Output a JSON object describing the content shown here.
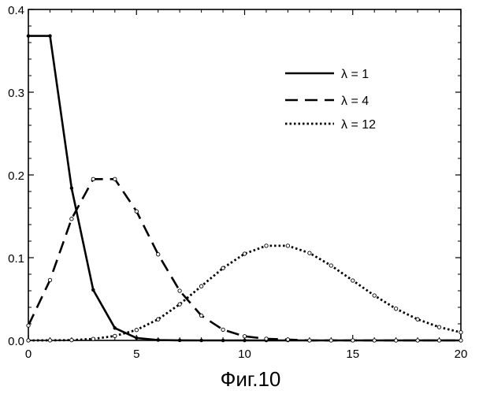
{
  "caption": "Фиг.10",
  "chart_data": {
    "type": "line",
    "title": "",
    "xlabel": "",
    "ylabel": "",
    "xlim": [
      0,
      20
    ],
    "ylim": [
      0,
      0.4
    ],
    "xticks": [
      0,
      5,
      10,
      15,
      20
    ],
    "xtick_labels": [
      "0",
      "5",
      "10",
      "15",
      "20"
    ],
    "yticks": [
      0,
      0.1,
      0.2,
      0.3,
      0.4
    ],
    "ytick_labels": [
      "0.0",
      "0.1",
      "0.2",
      "0.3",
      "0.4"
    ],
    "grid": false,
    "legend_position": "top-right",
    "series": [
      {
        "name": "λ = 1",
        "style": "solid",
        "x": [
          0,
          1,
          2,
          3,
          4,
          5,
          6,
          7,
          8,
          9,
          10,
          11,
          12,
          13,
          14,
          15,
          16,
          17,
          18,
          19,
          20
        ],
        "y": [
          0.368,
          0.368,
          0.184,
          0.061,
          0.015,
          0.003,
          0.0005,
          0.0001,
          0,
          0,
          0,
          0,
          0,
          0,
          0,
          0,
          0,
          0,
          0,
          0,
          0
        ]
      },
      {
        "name": "λ = 4",
        "style": "dashed",
        "x": [
          0,
          1,
          2,
          3,
          4,
          5,
          6,
          7,
          8,
          9,
          10,
          11,
          12,
          13,
          14,
          15,
          16,
          17,
          18,
          19,
          20
        ],
        "y": [
          0.018,
          0.073,
          0.147,
          0.195,
          0.195,
          0.156,
          0.104,
          0.06,
          0.03,
          0.013,
          0.005,
          0.002,
          0.001,
          0,
          0,
          0,
          0,
          0,
          0,
          0,
          0
        ]
      },
      {
        "name": "λ = 12",
        "style": "dotted",
        "x": [
          0,
          1,
          2,
          3,
          4,
          5,
          6,
          7,
          8,
          9,
          10,
          11,
          12,
          13,
          14,
          15,
          16,
          17,
          18,
          19,
          20
        ],
        "y": [
          0.0,
          0.0001,
          0.0004,
          0.0018,
          0.0053,
          0.0127,
          0.0255,
          0.0437,
          0.0655,
          0.0874,
          0.1048,
          0.1144,
          0.1144,
          0.1056,
          0.0905,
          0.0724,
          0.0543,
          0.0383,
          0.0255,
          0.0161,
          0.0097
        ]
      }
    ]
  }
}
